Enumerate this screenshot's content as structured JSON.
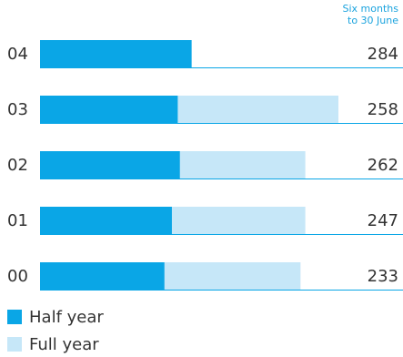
{
  "chart_data": {
    "type": "bar",
    "orientation": "horizontal",
    "annotation": [
      "Six months",
      "to 30 June"
    ],
    "categories": [
      "04",
      "03",
      "02",
      "01",
      "00"
    ],
    "series": [
      {
        "name": "Half year",
        "color": "#0aa6e6",
        "values": [
          284,
          258,
          262,
          247,
          233
        ]
      },
      {
        "name": "Full year",
        "color": "#c6e7f8",
        "values": [
          null,
          559,
          497,
          497,
          488
        ]
      }
    ],
    "xlim": [
      0,
      680
    ]
  }
}
